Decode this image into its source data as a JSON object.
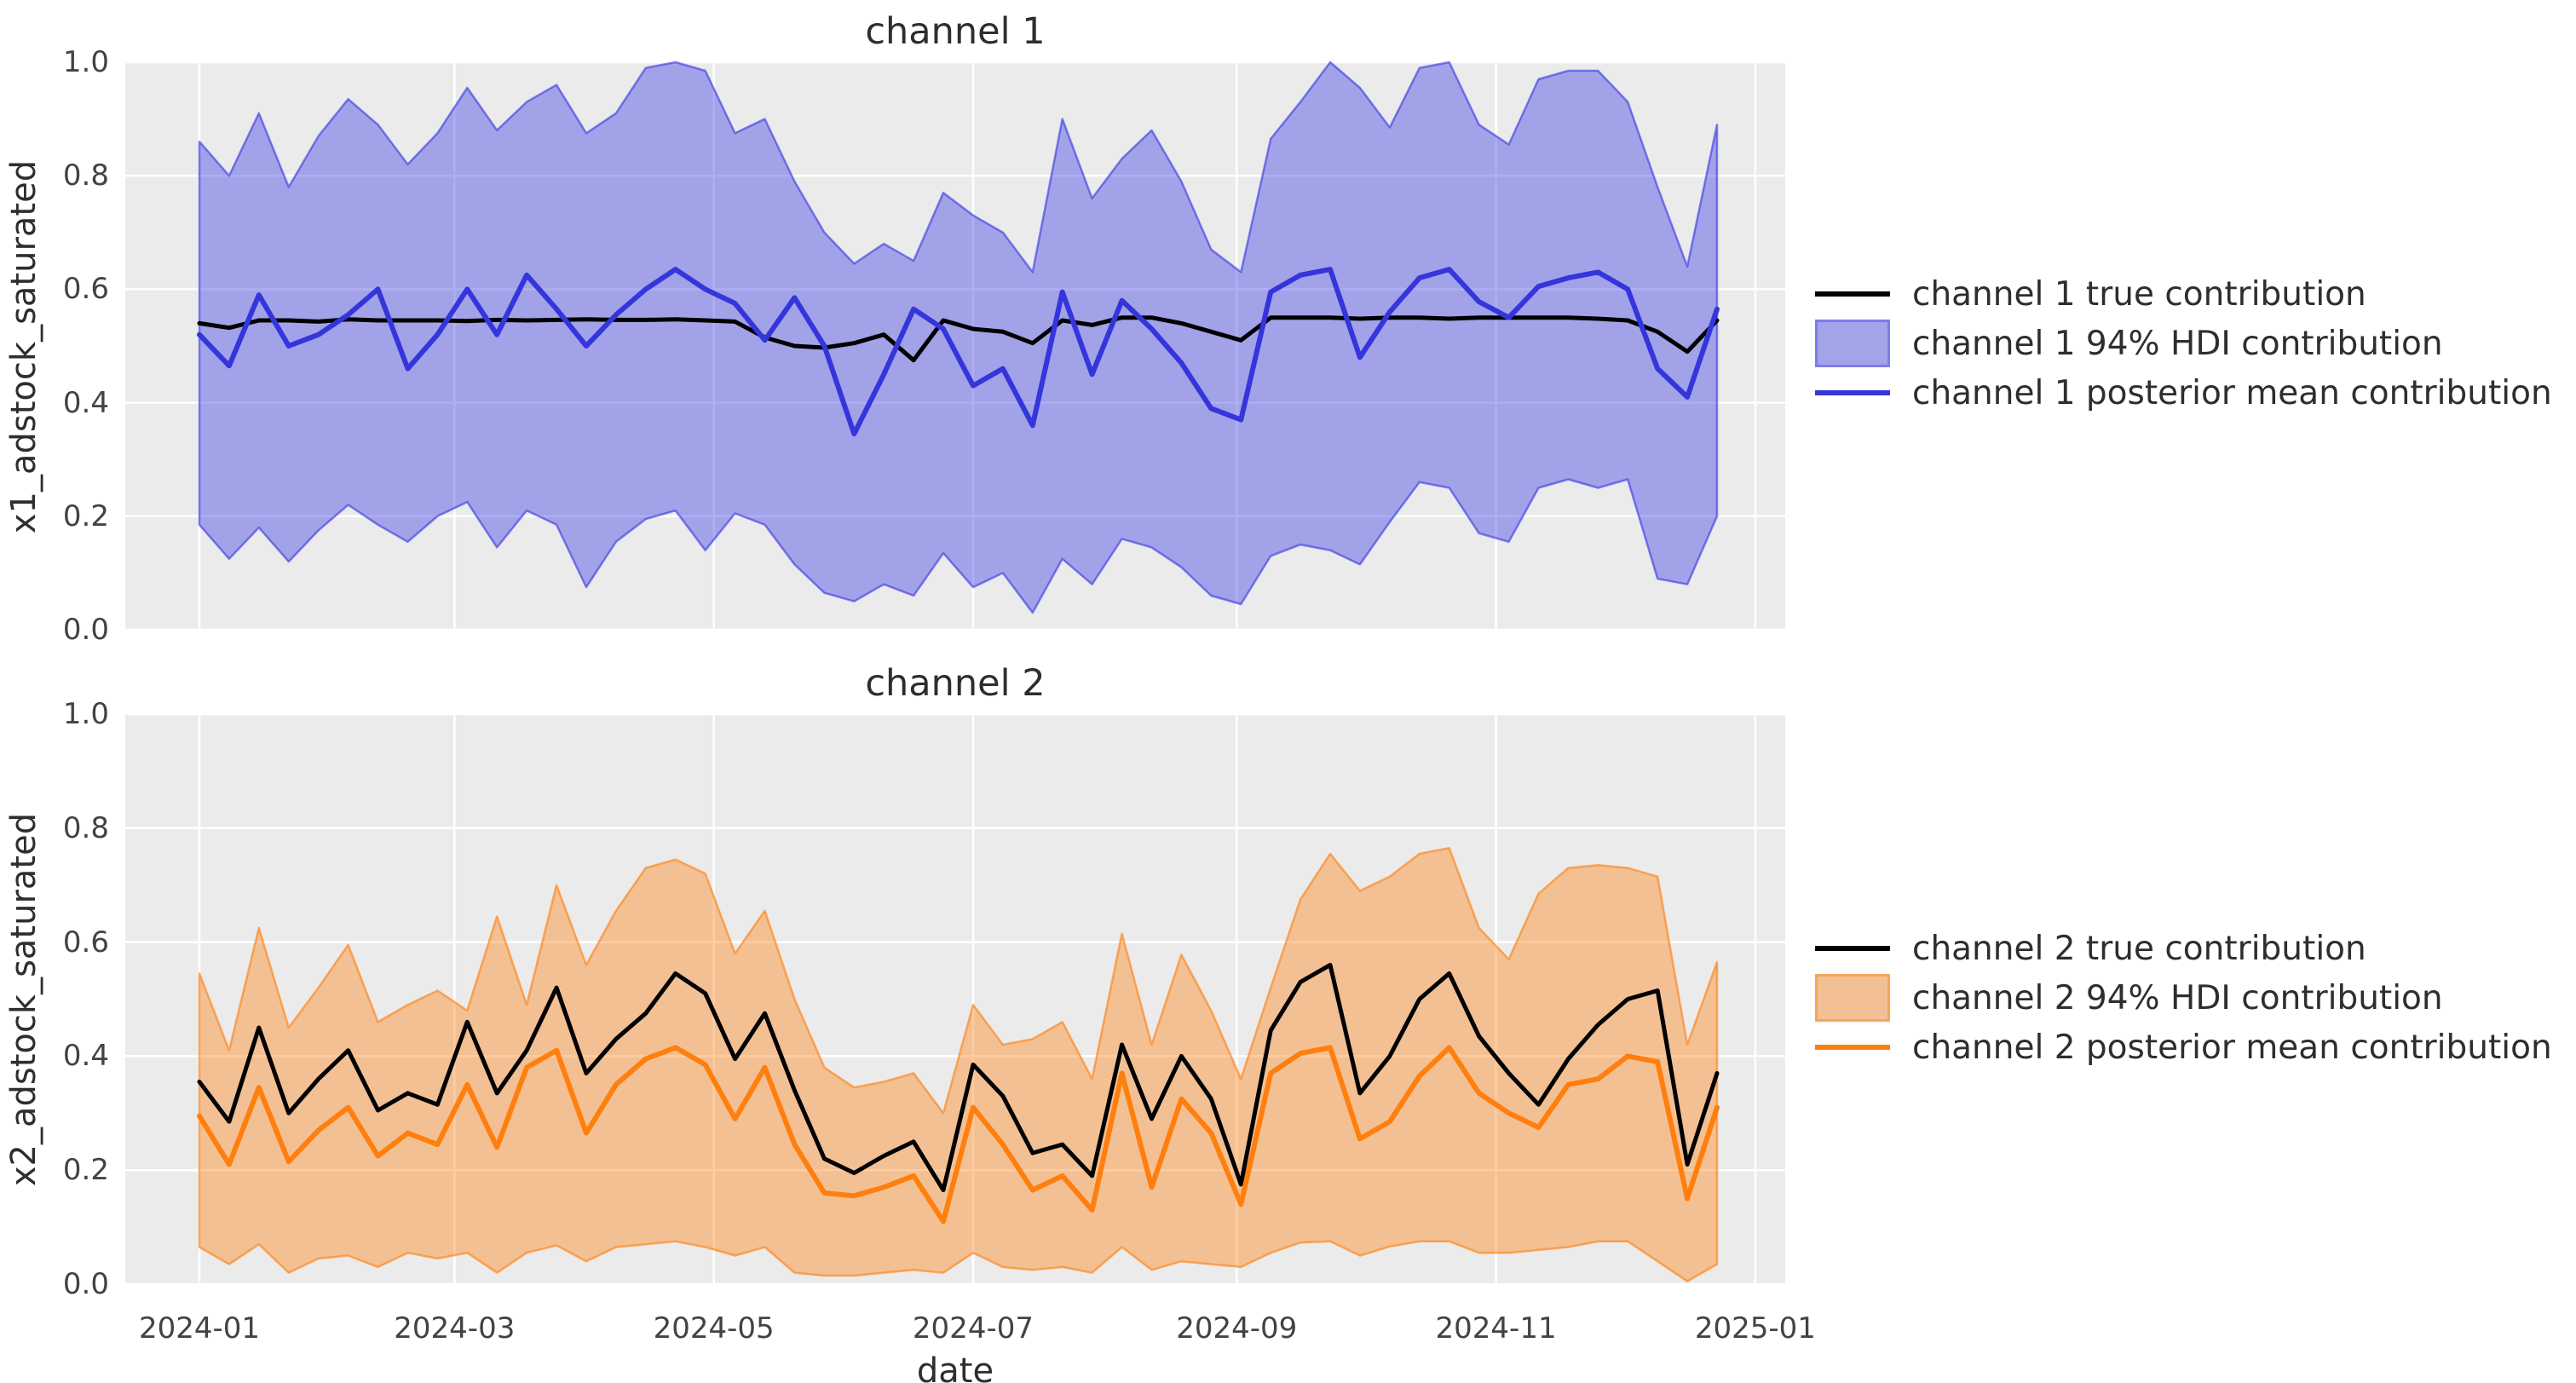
{
  "style": {
    "background": "#ffffff",
    "plot_bg": "#ebebeb",
    "grid_color": "#ffffff",
    "title_color": "#2e2e2e",
    "tick_color": "#434343"
  },
  "xaxis": {
    "label": "date",
    "ticks": [
      {
        "label": "2024-01",
        "week": 0
      },
      {
        "label": "2024-03",
        "week": 8.571
      },
      {
        "label": "2024-05",
        "week": 17.286
      },
      {
        "label": "2024-07",
        "week": 26.0
      },
      {
        "label": "2024-09",
        "week": 34.857
      },
      {
        "label": "2024-11",
        "week": 43.571
      },
      {
        "label": "2025-01",
        "week": 52.286
      }
    ]
  },
  "yaxis": {
    "ticks": [
      {
        "label": "0.0",
        "value": 0.0
      },
      {
        "label": "0.2",
        "value": 0.2
      },
      {
        "label": "0.4",
        "value": 0.4
      },
      {
        "label": "0.6",
        "value": 0.6
      },
      {
        "label": "0.8",
        "value": 0.8
      },
      {
        "label": "1.0",
        "value": 1.0
      }
    ]
  },
  "chart_data": [
    {
      "type": "line",
      "title": "channel 1",
      "ylabel": "x1_adstock_saturated",
      "xlabel": "",
      "ylim": [
        0.0,
        1.0
      ],
      "grid": true,
      "legend_position": "center right outside",
      "colors": {
        "true_line": "#000000",
        "mean_line": "#3535dc",
        "band_fill": "rgba(52,52,228,0.40)",
        "band_edge": "rgba(52,52,228,0.60)"
      },
      "legend": [
        {
          "type": "line",
          "color": "#000000",
          "label": "channel 1 true contribution"
        },
        {
          "type": "patch",
          "fill": "#a3a3e9",
          "edge": "#7d7de6",
          "label": "channel 1 94% HDI contribution"
        },
        {
          "type": "line",
          "color": "#3535dc",
          "label": "channel 1 posterior mean contribution"
        }
      ],
      "dates": [
        "2024-01-01",
        "2024-01-08",
        "2024-01-15",
        "2024-01-22",
        "2024-01-29",
        "2024-02-05",
        "2024-02-12",
        "2024-02-19",
        "2024-02-26",
        "2024-03-04",
        "2024-03-11",
        "2024-03-18",
        "2024-03-25",
        "2024-04-01",
        "2024-04-08",
        "2024-04-15",
        "2024-04-22",
        "2024-04-29",
        "2024-05-06",
        "2024-05-13",
        "2024-05-20",
        "2024-05-27",
        "2024-06-03",
        "2024-06-10",
        "2024-06-17",
        "2024-06-24",
        "2024-07-01",
        "2024-07-08",
        "2024-07-15",
        "2024-07-22",
        "2024-07-29",
        "2024-08-05",
        "2024-08-12",
        "2024-08-19",
        "2024-08-26",
        "2024-09-02",
        "2024-09-09",
        "2024-09-16",
        "2024-09-23",
        "2024-09-30",
        "2024-10-07",
        "2024-10-14",
        "2024-10-21",
        "2024-10-28",
        "2024-11-04",
        "2024-11-11",
        "2024-11-18",
        "2024-11-25",
        "2024-12-02",
        "2024-12-09",
        "2024-12-16",
        "2024-12-23"
      ],
      "true_contribution": [
        0.54,
        0.532,
        0.545,
        0.545,
        0.543,
        0.547,
        0.545,
        0.545,
        0.545,
        0.544,
        0.546,
        0.545,
        0.546,
        0.547,
        0.546,
        0.546,
        0.547,
        0.545,
        0.543,
        0.515,
        0.5,
        0.497,
        0.505,
        0.52,
        0.475,
        0.545,
        0.53,
        0.525,
        0.505,
        0.545,
        0.537,
        0.55,
        0.55,
        0.54,
        0.525,
        0.51,
        0.55,
        0.55,
        0.55,
        0.548,
        0.55,
        0.55,
        0.548,
        0.55,
        0.55,
        0.55,
        0.55,
        0.548,
        0.545,
        0.525,
        0.49,
        0.545
      ],
      "posterior_mean": [
        0.52,
        0.465,
        0.59,
        0.5,
        0.52,
        0.555,
        0.6,
        0.46,
        0.52,
        0.6,
        0.52,
        0.625,
        0.565,
        0.5,
        0.555,
        0.6,
        0.635,
        0.6,
        0.575,
        0.51,
        0.585,
        0.5,
        0.345,
        0.45,
        0.565,
        0.53,
        0.43,
        0.46,
        0.36,
        0.595,
        0.45,
        0.58,
        0.53,
        0.47,
        0.39,
        0.37,
        0.595,
        0.625,
        0.635,
        0.48,
        0.56,
        0.62,
        0.635,
        0.578,
        0.55,
        0.605,
        0.62,
        0.63,
        0.6,
        0.46,
        0.41,
        0.565
      ],
      "hdi_94_upper": [
        0.86,
        0.8,
        0.91,
        0.78,
        0.87,
        0.935,
        0.89,
        0.82,
        0.875,
        0.955,
        0.88,
        0.93,
        0.96,
        0.875,
        0.91,
        0.99,
        1.0,
        0.985,
        0.875,
        0.9,
        0.79,
        0.7,
        0.645,
        0.68,
        0.65,
        0.77,
        0.73,
        0.7,
        0.63,
        0.9,
        0.76,
        0.83,
        0.88,
        0.79,
        0.67,
        0.63,
        0.865,
        0.93,
        1.0,
        0.955,
        0.885,
        0.99,
        1.0,
        0.89,
        0.855,
        0.97,
        0.985,
        0.985,
        0.93,
        0.78,
        0.64,
        0.89
      ],
      "hdi_94_lower": [
        0.185,
        0.125,
        0.18,
        0.12,
        0.175,
        0.22,
        0.185,
        0.155,
        0.2,
        0.225,
        0.145,
        0.21,
        0.185,
        0.075,
        0.155,
        0.195,
        0.21,
        0.14,
        0.205,
        0.185,
        0.115,
        0.065,
        0.05,
        0.08,
        0.06,
        0.135,
        0.075,
        0.1,
        0.03,
        0.125,
        0.08,
        0.16,
        0.145,
        0.11,
        0.06,
        0.045,
        0.13,
        0.15,
        0.14,
        0.115,
        0.19,
        0.26,
        0.25,
        0.17,
        0.155,
        0.25,
        0.265,
        0.25,
        0.265,
        0.09,
        0.08,
        0.2
      ]
    },
    {
      "type": "line",
      "title": "channel 2",
      "ylabel": "x2_adstock_saturated",
      "xlabel": "date",
      "ylim": [
        0.0,
        1.0
      ],
      "grid": true,
      "legend_position": "center right outside",
      "colors": {
        "true_line": "#000000",
        "mean_line": "#ff7f0e",
        "band_fill": "rgba(255,127,14,0.40)",
        "band_edge": "rgba(255,127,14,0.62)"
      },
      "legend": [
        {
          "type": "line",
          "color": "#000000",
          "label": "channel 2 true contribution"
        },
        {
          "type": "patch",
          "fill": "#f3c096",
          "edge": "#f8a55b",
          "label": "channel 2 94% HDI contribution"
        },
        {
          "type": "line",
          "color": "#ff7f0e",
          "label": "channel 2 posterior mean contribution"
        }
      ],
      "dates": [
        "2024-01-01",
        "2024-01-08",
        "2024-01-15",
        "2024-01-22",
        "2024-01-29",
        "2024-02-05",
        "2024-02-12",
        "2024-02-19",
        "2024-02-26",
        "2024-03-04",
        "2024-03-11",
        "2024-03-18",
        "2024-03-25",
        "2024-04-01",
        "2024-04-08",
        "2024-04-15",
        "2024-04-22",
        "2024-04-29",
        "2024-05-06",
        "2024-05-13",
        "2024-05-20",
        "2024-05-27",
        "2024-06-03",
        "2024-06-10",
        "2024-06-17",
        "2024-06-24",
        "2024-07-01",
        "2024-07-08",
        "2024-07-15",
        "2024-07-22",
        "2024-07-29",
        "2024-08-05",
        "2024-08-12",
        "2024-08-19",
        "2024-08-26",
        "2024-09-02",
        "2024-09-09",
        "2024-09-16",
        "2024-09-23",
        "2024-09-30",
        "2024-10-07",
        "2024-10-14",
        "2024-10-21",
        "2024-10-28",
        "2024-11-04",
        "2024-11-11",
        "2024-11-18",
        "2024-11-25",
        "2024-12-02",
        "2024-12-09",
        "2024-12-16",
        "2024-12-23"
      ],
      "true_contribution": [
        0.355,
        0.285,
        0.45,
        0.3,
        0.36,
        0.41,
        0.305,
        0.335,
        0.315,
        0.46,
        0.335,
        0.41,
        0.52,
        0.37,
        0.43,
        0.475,
        0.545,
        0.51,
        0.395,
        0.475,
        0.34,
        0.22,
        0.195,
        0.225,
        0.25,
        0.165,
        0.385,
        0.33,
        0.23,
        0.245,
        0.19,
        0.42,
        0.29,
        0.4,
        0.325,
        0.175,
        0.445,
        0.53,
        0.56,
        0.335,
        0.4,
        0.5,
        0.545,
        0.435,
        0.37,
        0.315,
        0.395,
        0.455,
        0.5,
        0.515,
        0.21,
        0.37
      ],
      "posterior_mean": [
        0.295,
        0.21,
        0.345,
        0.215,
        0.27,
        0.31,
        0.225,
        0.265,
        0.245,
        0.35,
        0.24,
        0.38,
        0.41,
        0.265,
        0.35,
        0.395,
        0.415,
        0.385,
        0.29,
        0.38,
        0.245,
        0.16,
        0.155,
        0.17,
        0.19,
        0.11,
        0.31,
        0.245,
        0.165,
        0.19,
        0.13,
        0.37,
        0.17,
        0.325,
        0.265,
        0.14,
        0.37,
        0.405,
        0.415,
        0.255,
        0.285,
        0.365,
        0.415,
        0.335,
        0.3,
        0.275,
        0.35,
        0.36,
        0.4,
        0.39,
        0.15,
        0.31
      ],
      "hdi_94_upper": [
        0.545,
        0.41,
        0.625,
        0.45,
        0.52,
        0.595,
        0.46,
        0.49,
        0.515,
        0.48,
        0.645,
        0.49,
        0.7,
        0.56,
        0.655,
        0.73,
        0.745,
        0.72,
        0.58,
        0.655,
        0.5,
        0.38,
        0.345,
        0.355,
        0.37,
        0.3,
        0.49,
        0.42,
        0.43,
        0.46,
        0.36,
        0.615,
        0.42,
        0.578,
        0.48,
        0.36,
        0.52,
        0.675,
        0.755,
        0.69,
        0.715,
        0.755,
        0.765,
        0.625,
        0.57,
        0.685,
        0.73,
        0.735,
        0.73,
        0.715,
        0.42,
        0.565
      ],
      "hdi_94_lower": [
        0.065,
        0.035,
        0.07,
        0.02,
        0.045,
        0.05,
        0.03,
        0.055,
        0.045,
        0.055,
        0.02,
        0.055,
        0.068,
        0.04,
        0.065,
        0.07,
        0.075,
        0.065,
        0.05,
        0.065,
        0.02,
        0.015,
        0.015,
        0.02,
        0.025,
        0.02,
        0.055,
        0.03,
        0.025,
        0.03,
        0.02,
        0.065,
        0.025,
        0.04,
        0.035,
        0.03,
        0.055,
        0.073,
        0.075,
        0.05,
        0.066,
        0.075,
        0.075,
        0.055,
        0.055,
        0.06,
        0.065,
        0.075,
        0.075,
        0.04,
        0.005,
        0.035
      ]
    }
  ]
}
